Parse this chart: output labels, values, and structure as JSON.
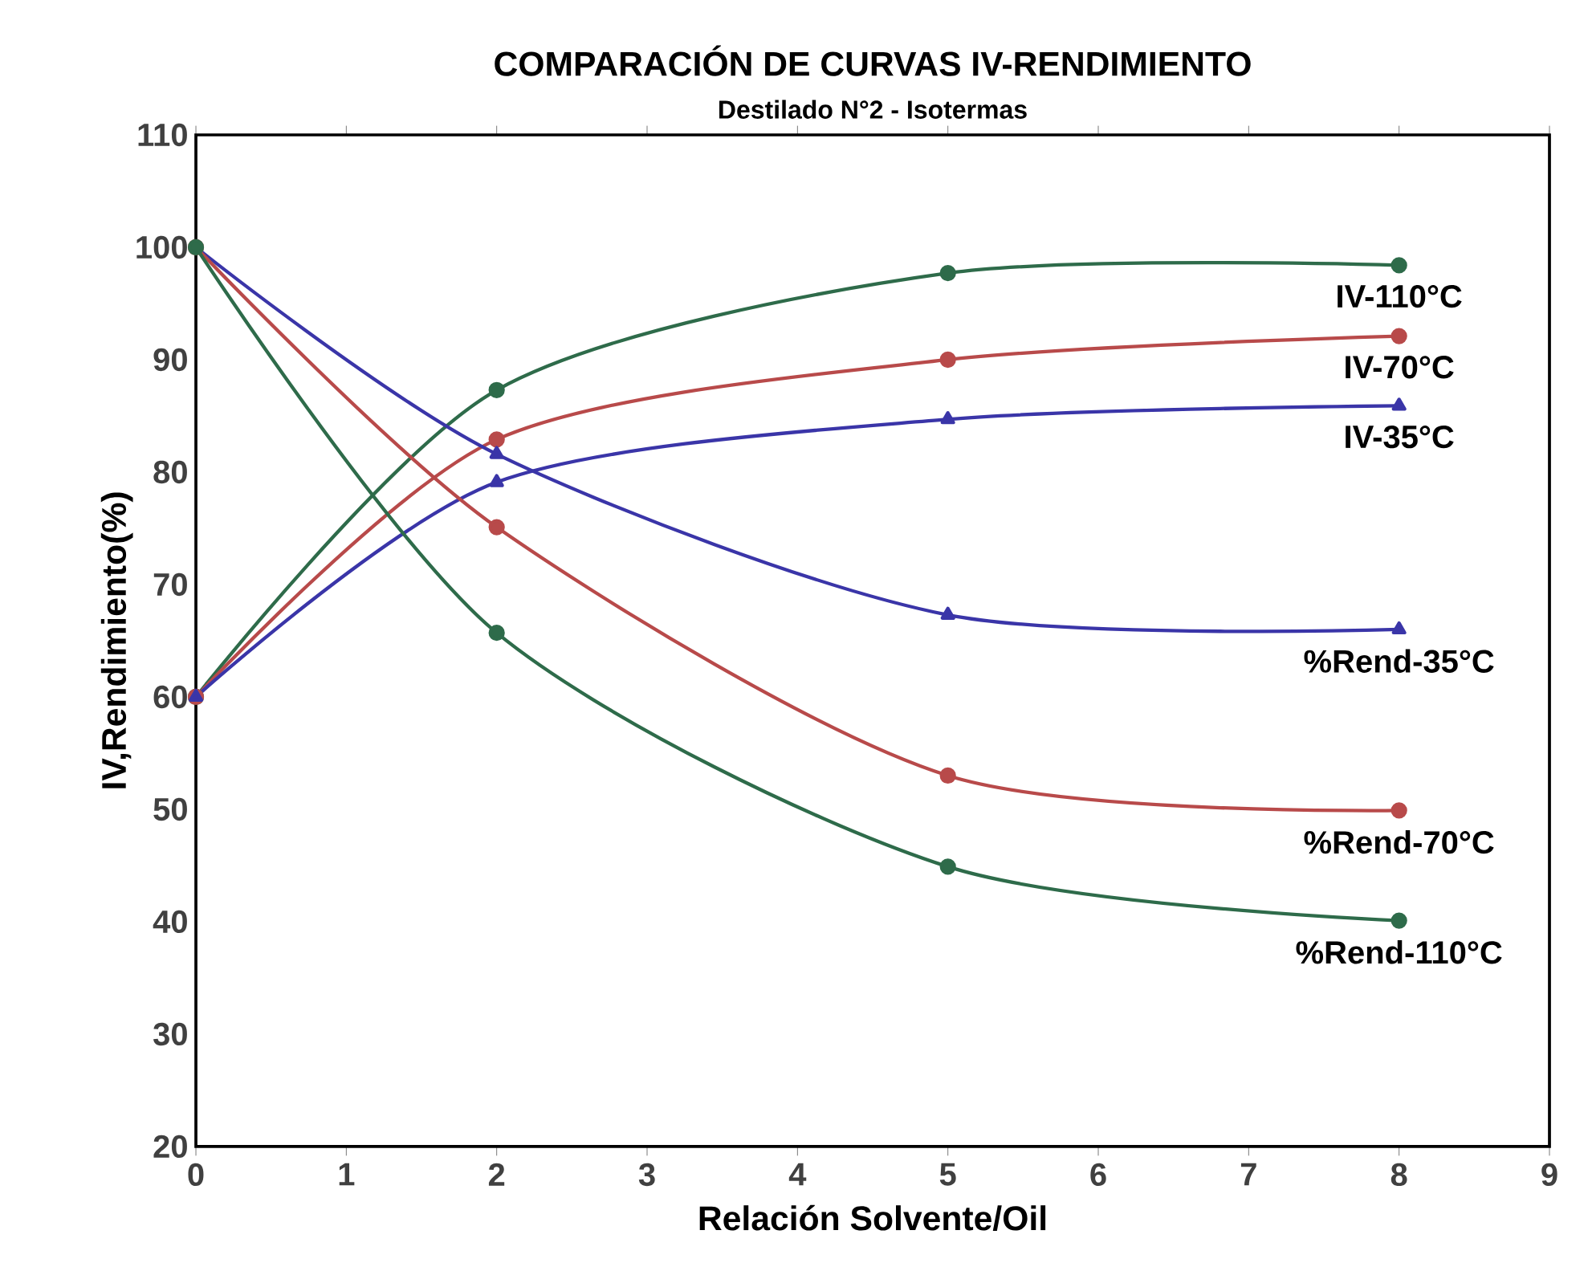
{
  "chart_data": {
    "type": "line",
    "title": "COMPARACIÓN DE CURVAS IV-RENDIMIENTO",
    "subtitle": "Destilado N°2 - Isotermas",
    "xlabel": "Relación Solvente/Oil",
    "ylabel": "IV,Rendimiento(%)",
    "xlim": [
      0,
      9
    ],
    "ylim": [
      20,
      110
    ],
    "xticks": [
      0,
      1,
      2,
      3,
      4,
      5,
      6,
      7,
      8,
      9
    ],
    "yticks": [
      20,
      30,
      40,
      50,
      60,
      70,
      80,
      90,
      100,
      110
    ],
    "x": [
      0,
      2,
      5,
      8
    ],
    "grid": false,
    "legend": false,
    "line_style": "solid",
    "series": [
      {
        "name": "IV-110°C",
        "color": "#2e6b4a",
        "marker": "circle",
        "values": [
          60,
          87.3,
          97.7,
          98.4
        ]
      },
      {
        "name": "IV-70°C",
        "color": "#b84a4a",
        "marker": "circle",
        "values": [
          60,
          82.9,
          90,
          92.1
        ]
      },
      {
        "name": "IV-35°C",
        "color": "#3a35a8",
        "marker": "triangle",
        "values": [
          60,
          79.1,
          84.7,
          85.9
        ]
      },
      {
        "name": "%Rend-35°C",
        "color": "#3a35a8",
        "marker": "triangle",
        "values": [
          100,
          81.6,
          67.3,
          66
        ]
      },
      {
        "name": "%Rend-70°C",
        "color": "#b84a4a",
        "marker": "circle",
        "values": [
          100,
          75.1,
          53,
          49.9
        ]
      },
      {
        "name": "%Rend-110°C",
        "color": "#2e6b4a",
        "marker": "circle",
        "values": [
          100,
          65.7,
          44.9,
          40.1
        ]
      }
    ]
  }
}
